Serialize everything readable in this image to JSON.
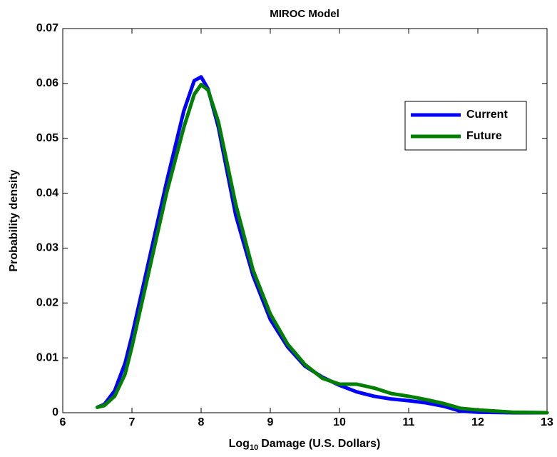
{
  "chart_data": {
    "type": "line",
    "title": "MIROC Model",
    "x_label": [
      "Log",
      "10",
      "Damage (U.S. Dollars)"
    ],
    "y_label": "Probability density",
    "x": [
      6.5,
      6.6,
      6.75,
      6.9,
      7.0,
      7.25,
      7.5,
      7.75,
      7.9,
      8.0,
      8.1,
      8.25,
      8.5,
      8.75,
      9.0,
      9.25,
      9.5,
      9.75,
      10.0,
      10.25,
      10.5,
      10.75,
      11.0,
      11.25,
      11.5,
      11.75,
      12.0,
      12.5,
      13.0
    ],
    "series": [
      {
        "name": "Current",
        "color": "#0000ff",
        "values": [
          0.001,
          0.0015,
          0.004,
          0.009,
          0.014,
          0.028,
          0.042,
          0.055,
          0.0605,
          0.0612,
          0.059,
          0.052,
          0.036,
          0.025,
          0.017,
          0.012,
          0.0085,
          0.0065,
          0.005,
          0.0038,
          0.003,
          0.0025,
          0.0022,
          0.0018,
          0.0012,
          0.0003,
          0.0001,
          0,
          0
        ]
      },
      {
        "name": "Future",
        "color": "#008000",
        "values": [
          0.001,
          0.0013,
          0.003,
          0.007,
          0.012,
          0.026,
          0.04,
          0.052,
          0.058,
          0.0598,
          0.0588,
          0.053,
          0.038,
          0.026,
          0.018,
          0.0125,
          0.0088,
          0.0063,
          0.0052,
          0.0052,
          0.0045,
          0.0035,
          0.003,
          0.0024,
          0.0017,
          0.0008,
          0.0005,
          0.0001,
          0
        ]
      }
    ],
    "xlim": [
      6,
      13
    ],
    "xticks": [
      6,
      7,
      8,
      9,
      10,
      11,
      12,
      13
    ],
    "ylim": [
      0,
      0.07
    ],
    "yticks": [
      0,
      0.01,
      0.02,
      0.03,
      0.04,
      0.05,
      0.06,
      0.07
    ],
    "grid": false,
    "legend": "upper right"
  }
}
